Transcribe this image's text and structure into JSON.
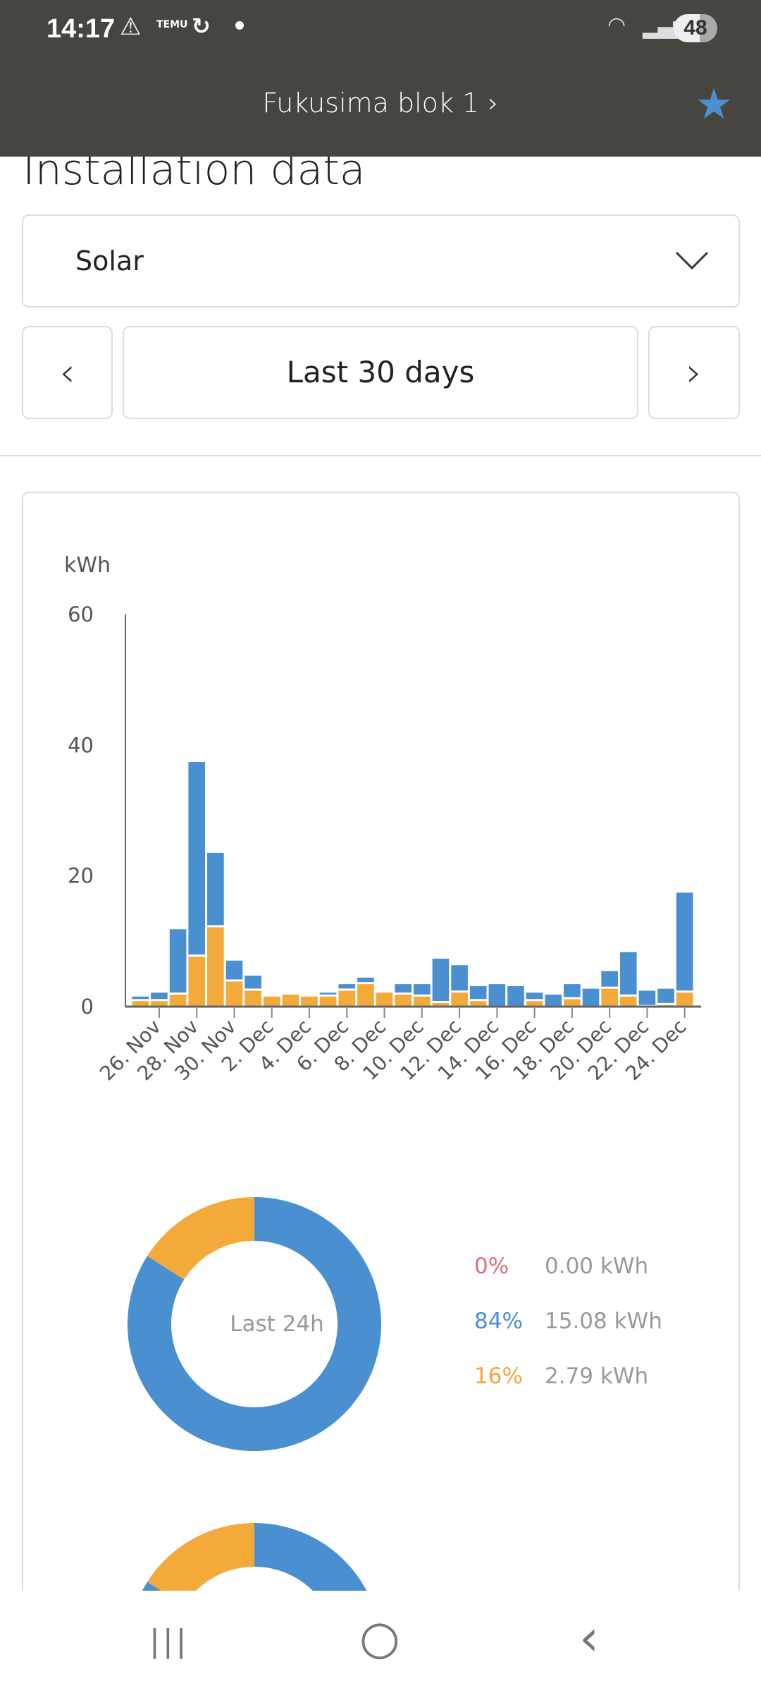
{
  "status_bar": {
    "time": "14:17",
    "battery": "48",
    "icons": [
      "warning-icon",
      "temu-icon",
      "sync-icon",
      "dot-icon",
      "wifi-icon",
      "signal-icon"
    ]
  },
  "header": {
    "title": "Fukusima blok 1",
    "chevron": "›",
    "favorite_icon": "star-icon",
    "accent": "#4a90d2",
    "bg": "#474540"
  },
  "page_title": "Installation data",
  "selector": {
    "value": "Solar"
  },
  "range": {
    "label": "Last 30 days",
    "prev": "‹",
    "next": "›"
  },
  "chart_data": {
    "type": "bar",
    "stacked": true,
    "ylabel": "kWh",
    "ylim": [
      0,
      60
    ],
    "yticks": [
      0,
      20,
      40,
      60
    ],
    "categories": [
      "25. Nov",
      "26. Nov",
      "27. Nov",
      "28. Nov",
      "29. Nov",
      "30. Nov",
      "1. Dec",
      "2. Dec",
      "3. Dec",
      "4. Dec",
      "5. Dec",
      "6. Dec",
      "7. Dec",
      "8. Dec",
      "9. Dec",
      "10. Dec",
      "11. Dec",
      "12. Dec",
      "13. Dec",
      "14. Dec",
      "15. Dec",
      "16. Dec",
      "17. Dec",
      "18. Dec",
      "19. Dec",
      "20. Dec",
      "21. Dec",
      "22. Dec",
      "23. Dec",
      "24. Dec"
    ],
    "xtick_labels": [
      "26. Nov",
      "28. Nov",
      "30. Nov",
      "2. Dec",
      "4. Dec",
      "6. Dec",
      "8. Dec",
      "10. Dec",
      "12. Dec",
      "14. Dec",
      "16. Dec",
      "18. Dec",
      "20. Dec",
      "22. Dec",
      "24. Dec"
    ],
    "series": [
      {
        "color": "#f4a93b",
        "values": [
          1.0,
          1.0,
          2.0,
          7.8,
          12.3,
          4.0,
          2.6,
          1.7,
          2.0,
          1.7,
          1.7,
          2.6,
          3.6,
          2.3,
          2.0,
          1.7,
          0.7,
          2.3,
          1.0,
          0,
          0,
          1.0,
          0,
          1.3,
          0,
          2.9,
          1.7,
          0.1,
          0.4,
          2.3
        ]
      },
      {
        "color": "#4a8fd0",
        "values": [
          0.7,
          1.3,
          10.0,
          29.8,
          11.4,
          3.2,
          2.3,
          0,
          0,
          0,
          0.6,
          1.0,
          1.0,
          0,
          1.6,
          1.9,
          6.8,
          4.2,
          2.3,
          3.6,
          3.3,
          1.3,
          2.0,
          2.3,
          2.9,
          2.7,
          6.8,
          2.5,
          2.5,
          15.3
        ]
      }
    ],
    "grid": false
  },
  "donut": {
    "center_label": "Last 24h",
    "slices": [
      {
        "pct": 0,
        "label": "0%",
        "value": "0.00 kWh",
        "color": "#e06c7a"
      },
      {
        "pct": 84,
        "label": "84%",
        "value": "15.08 kWh",
        "color": "#4a8fd0"
      },
      {
        "pct": 16,
        "label": "16%",
        "value": "2.79 kWh",
        "color": "#f4a93b"
      }
    ]
  },
  "navbar": {
    "recents": "|||",
    "home": "○",
    "back": "‹"
  }
}
